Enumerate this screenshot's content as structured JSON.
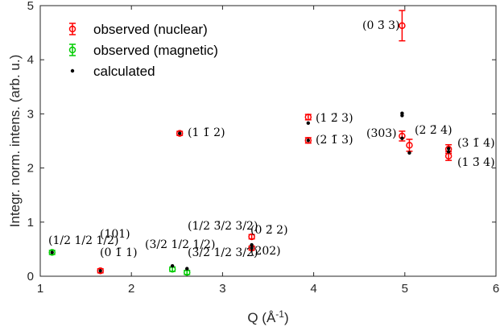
{
  "chart_data": {
    "type": "scatter",
    "xlabel": "Q (Å",
    "xlabel_sup": "-1",
    "xlabel_end": ")",
    "ylabel": "Integr. norm. intens. (arb. u.)",
    "xlim": [
      1,
      6
    ],
    "ylim": [
      0,
      5
    ],
    "xticks": [
      "1",
      "2",
      "3",
      "4",
      "5",
      "6"
    ],
    "yticks": [
      "0",
      "1",
      "2",
      "3",
      "4",
      "5"
    ],
    "legend_position": "top-left",
    "colors": {
      "nuclear": "#ff0000",
      "magnetic": "#00cc00",
      "calculated": "#000000"
    },
    "series": [
      {
        "name": "observed (nuclear)",
        "style": "circle-errorbar",
        "points": [
          {
            "x": 1.66,
            "y": 0.1,
            "err": 0.02
          },
          {
            "x": 2.53,
            "y": 2.64,
            "err": 0.03
          },
          {
            "x": 3.32,
            "y": 0.73,
            "err": 0.04
          },
          {
            "x": 3.32,
            "y": 0.52,
            "err": 0.03
          },
          {
            "x": 3.94,
            "y": 2.94,
            "err": 0.05
          },
          {
            "x": 3.94,
            "y": 2.51,
            "err": 0.05
          },
          {
            "x": 4.97,
            "y": 2.59,
            "err": 0.09
          },
          {
            "x": 4.97,
            "y": 4.63,
            "err": 0.28
          },
          {
            "x": 5.05,
            "y": 2.42,
            "err": 0.11
          },
          {
            "x": 5.48,
            "y": 2.35,
            "err": 0.08
          },
          {
            "x": 5.48,
            "y": 2.22,
            "err": 0.08
          }
        ]
      },
      {
        "name": "observed (magnetic)",
        "style": "circle-errorbar",
        "points": [
          {
            "x": 1.13,
            "y": 0.44,
            "err": 0.02
          },
          {
            "x": 2.45,
            "y": 0.13,
            "err": 0.04
          },
          {
            "x": 2.61,
            "y": 0.07,
            "err": 0.03
          }
        ]
      },
      {
        "name": "calculated",
        "style": "dot",
        "points": [
          {
            "x": 1.13,
            "y": 0.44
          },
          {
            "x": 1.66,
            "y": 0.1
          },
          {
            "x": 2.45,
            "y": 0.19
          },
          {
            "x": 2.53,
            "y": 2.64
          },
          {
            "x": 2.61,
            "y": 0.14
          },
          {
            "x": 3.32,
            "y": 0.58
          },
          {
            "x": 3.32,
            "y": 0.52
          },
          {
            "x": 3.94,
            "y": 2.83
          },
          {
            "x": 3.94,
            "y": 2.51
          },
          {
            "x": 4.97,
            "y": 3.01
          },
          {
            "x": 4.97,
            "y": 2.97
          },
          {
            "x": 4.97,
            "y": 2.55
          },
          {
            "x": 5.05,
            "y": 2.28
          },
          {
            "x": 5.48,
            "y": 2.36
          },
          {
            "x": 5.48,
            "y": 2.3
          }
        ]
      }
    ],
    "annotations": [
      {
        "text": "(1 1̄ 2)"
      },
      {
        "text": "(1 2̄ 3)"
      },
      {
        "text": "(2 1̄ 3)"
      },
      {
        "text": "(0 3̄ 3)"
      },
      {
        "text": "(303)"
      },
      {
        "text": "(2 2̄ 4)"
      },
      {
        "text": "(3 1̄ 4)"
      },
      {
        "text": "(1 3̄ 4)"
      },
      {
        "text": "(101)"
      },
      {
        "text": "(0 1̄ 1)"
      },
      {
        "text": "(0 2̄ 2)"
      },
      {
        "text": "(202)"
      },
      {
        "text": "(1/2 1/2 1/2)"
      },
      {
        "text": "(3/2 1/2 1/2)"
      },
      {
        "text": "(1/2 3̄/2 3/2)"
      },
      {
        "text": "(3̄/2 1/2 3/2)"
      }
    ]
  }
}
